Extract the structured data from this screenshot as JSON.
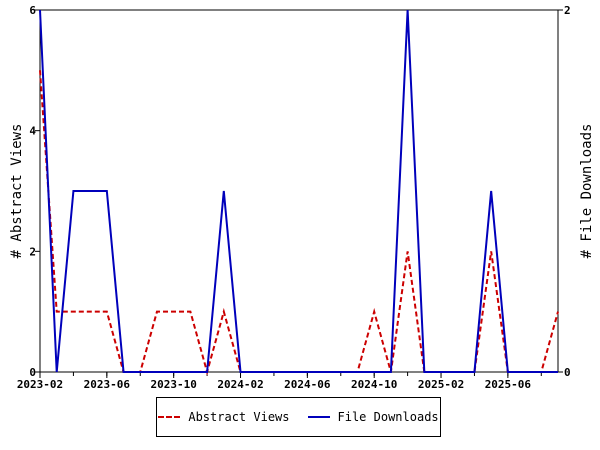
{
  "chart_data": {
    "type": "line",
    "xlabel": "",
    "ylabel_left": "# Abstract Views",
    "ylabel_right": "# File Downloads",
    "x": [
      "2023-02",
      "2023-03",
      "2023-04",
      "2023-05",
      "2023-06",
      "2023-07",
      "2023-08",
      "2023-09",
      "2023-10",
      "2023-11",
      "2023-12",
      "2024-01",
      "2024-02",
      "2024-03",
      "2024-04",
      "2024-05",
      "2024-06",
      "2024-07",
      "2024-08",
      "2024-09",
      "2024-10",
      "2024-11",
      "2024-12",
      "2025-01",
      "2025-02",
      "2025-03",
      "2025-04",
      "2025-05",
      "2025-06",
      "2025-07",
      "2025-08",
      "2025-09"
    ],
    "x_tick_labels": [
      "2023-02",
      "2023-06",
      "2023-10",
      "2024-02",
      "2024-06",
      "2024-10",
      "2025-02",
      "2025-06"
    ],
    "ylim_left": [
      0,
      6
    ],
    "y_ticks_left": [
      "0",
      "2",
      "4",
      "6"
    ],
    "ylim_right": [
      0,
      2
    ],
    "y_ticks_right": [
      "0",
      "2"
    ],
    "grid": false,
    "legend_position": "bottom",
    "series": [
      {
        "name": "Abstract Views",
        "axis": "left",
        "color": "#cc0000",
        "style": "dashed",
        "values": [
          5,
          1,
          1,
          1,
          1,
          0,
          0,
          1,
          1,
          1,
          0,
          1,
          0,
          0,
          0,
          0,
          0,
          0,
          0,
          0,
          1,
          0,
          2,
          0,
          0,
          0,
          0,
          2,
          0,
          0,
          0,
          1
        ]
      },
      {
        "name": "File Downloads",
        "axis": "right",
        "color": "#0000bb",
        "style": "solid",
        "values": [
          2,
          0,
          1,
          1,
          1,
          0,
          0,
          0,
          0,
          0,
          0,
          1,
          0,
          0,
          0,
          0,
          0,
          0,
          0,
          0,
          0,
          0,
          2,
          0,
          0,
          0,
          0,
          1,
          0,
          0,
          0,
          0
        ]
      }
    ]
  }
}
